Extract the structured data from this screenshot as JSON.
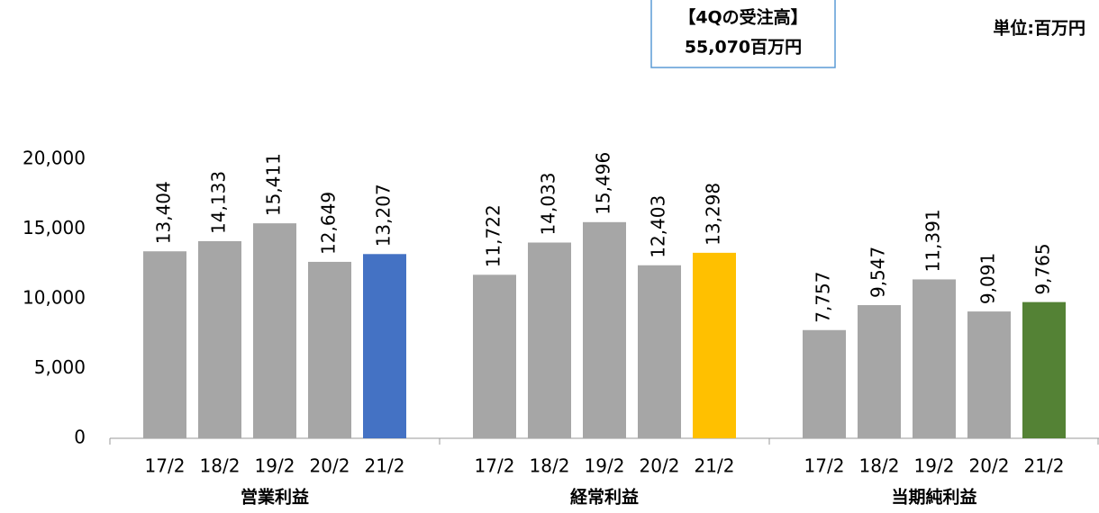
{
  "chart_data": {
    "type": "bar",
    "annotation": [
      "【4Qの受注高】",
      "55,070百万円"
    ],
    "unit": "単位:百万円",
    "ylim": [
      0,
      20000
    ],
    "yticks": [
      0,
      {
        "value": 5000,
        "label": "5,000"
      },
      {
        "value": 10000,
        "label": "10,000"
      },
      {
        "value": 15000,
        "label": "15,000"
      },
      {
        "value": 20000,
        "label": "20,000"
      }
    ],
    "grid": false,
    "groups": [
      {
        "name": "営業利益",
        "categories": [
          "17/2",
          "18/2",
          "19/2",
          "20/2",
          "21/2"
        ],
        "values": [
          13404,
          14133,
          15411,
          12649,
          13207
        ],
        "value_labels": [
          "13,404",
          "14,133",
          "15,411",
          "12,649",
          "13,207"
        ],
        "colors": [
          "#a6a6a6",
          "#a6a6a6",
          "#a6a6a6",
          "#a6a6a6",
          "#4472c4"
        ]
      },
      {
        "name": "経常利益",
        "categories": [
          "17/2",
          "18/2",
          "19/2",
          "20/2",
          "21/2"
        ],
        "values": [
          11722,
          14033,
          15496,
          12403,
          13298
        ],
        "value_labels": [
          "11,722",
          "14,033",
          "15,496",
          "12,403",
          "13,298"
        ],
        "colors": [
          "#a6a6a6",
          "#a6a6a6",
          "#a6a6a6",
          "#a6a6a6",
          "#ffc000"
        ]
      },
      {
        "name": "当期純利益",
        "categories": [
          "17/2",
          "18/2",
          "19/2",
          "20/2",
          "21/2"
        ],
        "values": [
          7757,
          9547,
          11391,
          9091,
          9765
        ],
        "value_labels": [
          "7,757",
          "9,547",
          "11,391",
          "9,091",
          "9,765"
        ],
        "colors": [
          "#a6a6a6",
          "#a6a6a6",
          "#a6a6a6",
          "#a6a6a6",
          "#548235"
        ]
      }
    ]
  }
}
